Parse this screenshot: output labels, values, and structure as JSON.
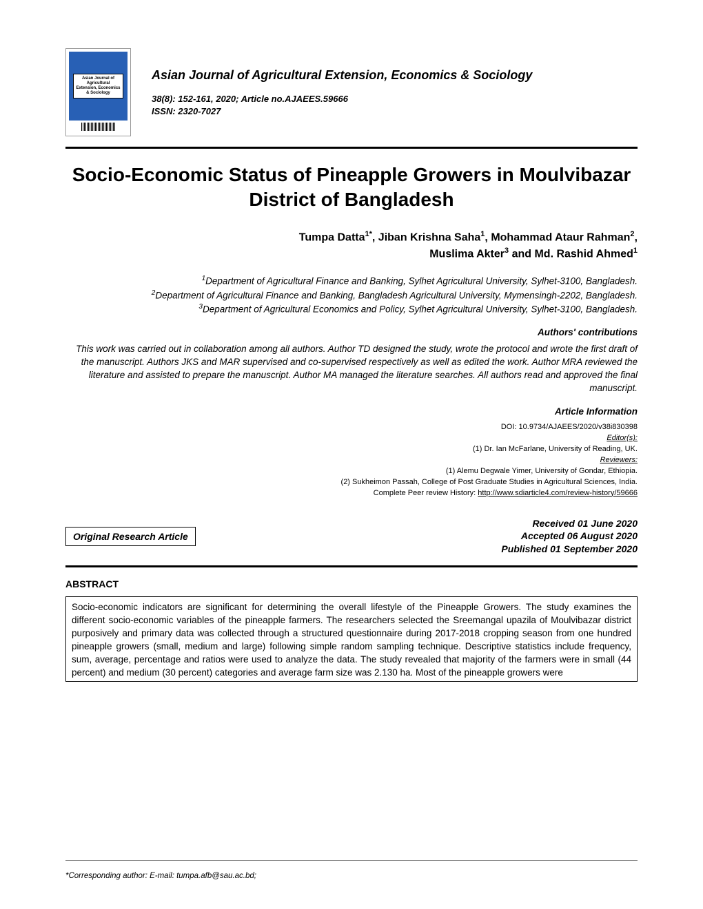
{
  "journal": {
    "name": "Asian Journal of Agricultural Extension, Economics & Sociology",
    "citation_line1": "38(8): 152-161, 2020; Article no.AJAEES.59666",
    "citation_line2": "ISSN: 2320-7027",
    "cover_label": "Asian Journal of Agricultural Extension, Economics & Sociology",
    "cover_bg": "#2860b5",
    "cover_border": "#999999"
  },
  "article": {
    "title": "Socio-Economic Status of Pineapple Growers in Moulvibazar District of Bangladesh",
    "type": "Original Research Article"
  },
  "authors": {
    "line1": "Tumpa Datta1*, Jiban Krishna Saha1, Mohammad Ataur Rahman2,",
    "line2": "Muslima Akter3 and Md. Rashid Ahmed1",
    "a1_name": "Tumpa Datta",
    "a1_sup": "1*",
    "a2_name": ", Jiban Krishna Saha",
    "a2_sup": "1",
    "a3_name": ", Mohammad Ataur Rahman",
    "a3_sup": "2",
    "a3_tail": ",",
    "a4_name": "Muslima Akter",
    "a4_sup": "3",
    "a5_name": " and Md. Rashid Ahmed",
    "a5_sup": "1"
  },
  "affiliations": {
    "aff1_sup": "1",
    "aff1": "Department of Agricultural Finance and Banking, Sylhet Agricultural University, Sylhet-3100, Bangladesh.",
    "aff2_sup": "2",
    "aff2": "Department of Agricultural Finance and Banking, Bangladesh Agricultural University, Mymensingh-2202, Bangladesh.",
    "aff3_sup": "3",
    "aff3": "Department of Agricultural Economics and Policy, Sylhet Agricultural University, Sylhet-3100, Bangladesh."
  },
  "contributions": {
    "heading": "Authors' contributions",
    "text": "This work was carried out in collaboration among all authors. Author TD designed the study, wrote the protocol and wrote the first draft of the manuscript. Authors JKS and MAR supervised and co-supervised respectively as well as edited the work. Author MRA reviewed the literature and assisted to prepare the manuscript. Author MA managed the literature searches. All authors read and approved the final manuscript."
  },
  "info": {
    "heading": "Article Information",
    "doi": "DOI: 10.9734/AJAEES/2020/v38i830398",
    "editors_label": "Editor(s):",
    "editor1": "(1) Dr. Ian McFarlane, University of Reading, UK.",
    "reviewers_label": "Reviewers:",
    "reviewer1": "(1) Alemu Degwale Yimer, University of Gondar, Ethiopia.",
    "reviewer2": "(2) Sukheimon Passah, College of Post Graduate Studies in Agricultural Sciences, India.",
    "history_prefix": "Complete Peer review History: ",
    "history_url": "http://www.sdiarticle4.com/review-history/59666"
  },
  "dates": {
    "received": "Received 01 June 2020",
    "accepted": "Accepted 06 August 2020",
    "published": "Published 01 September 2020"
  },
  "abstract": {
    "heading": "ABSTRACT",
    "text": "Socio-economic indicators are significant for determining the overall lifestyle of the Pineapple Growers. The study examines the different socio-economic variables of the pineapple farmers. The researchers selected the Sreemangal upazila of Moulvibazar district purposively and primary data was collected through a structured questionnaire during 2017-2018 cropping season from one hundred pineapple growers (small, medium and large) following simple random sampling technique. Descriptive statistics include frequency, sum, average, percentage and ratios were used to analyze the data. The study revealed that majority of the farmers were in small (44 percent) and medium (30 percent) categories and average farm size was 2.130 ha. Most of the pineapple growers were"
  },
  "corresponding": "*Corresponding author: E-mail: tumpa.afb@sau.ac.bd;",
  "colors": {
    "text": "#000000",
    "background": "#ffffff",
    "rule": "#000000",
    "footer_rule": "#888888"
  },
  "typography": {
    "title_fontsize": 28,
    "journal_name_fontsize": 18,
    "authors_fontsize": 16,
    "body_fontsize": 13.5,
    "info_fontsize": 11,
    "font_family": "Arial"
  }
}
